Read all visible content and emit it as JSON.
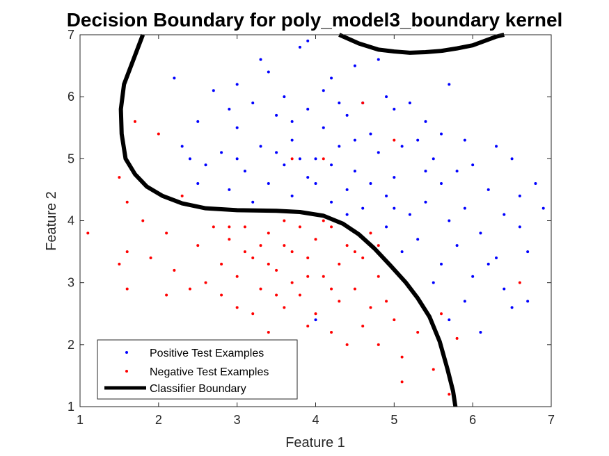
{
  "chart_data": {
    "type": "scatter",
    "title": "Decision Boundary for poly_model3_boundary kernel",
    "xlabel": "Feature 1",
    "ylabel": "Feature 2",
    "xlim": [
      1,
      7
    ],
    "ylim": [
      1,
      7
    ],
    "xticks": [
      1,
      2,
      3,
      4,
      5,
      6,
      7
    ],
    "yticks": [
      1,
      2,
      3,
      4,
      5,
      6,
      7
    ],
    "grid": false,
    "legend_position": "bottom-left",
    "colors": {
      "positive": "#0000ff",
      "negative": "#ff0000",
      "boundary": "#000000"
    },
    "series": [
      {
        "name": "Positive Test Examples",
        "kind": "points",
        "points": [
          [
            3.9,
            6.9
          ],
          [
            4.8,
            6.6
          ],
          [
            3.8,
            6.8
          ],
          [
            4.5,
            6.5
          ],
          [
            3.4,
            6.4
          ],
          [
            4.2,
            6.3
          ],
          [
            3.0,
            6.2
          ],
          [
            2.7,
            6.1
          ],
          [
            3.6,
            6.0
          ],
          [
            4.9,
            6.0
          ],
          [
            5.7,
            6.2
          ],
          [
            2.2,
            6.3
          ],
          [
            3.2,
            5.9
          ],
          [
            3.9,
            5.8
          ],
          [
            4.4,
            5.7
          ],
          [
            5.0,
            5.8
          ],
          [
            5.4,
            5.6
          ],
          [
            2.5,
            5.6
          ],
          [
            3.0,
            5.5
          ],
          [
            3.5,
            5.7
          ],
          [
            4.1,
            5.5
          ],
          [
            4.7,
            5.4
          ],
          [
            5.3,
            5.3
          ],
          [
            5.9,
            5.3
          ],
          [
            6.3,
            5.2
          ],
          [
            2.3,
            5.2
          ],
          [
            2.8,
            5.1
          ],
          [
            3.3,
            5.2
          ],
          [
            3.7,
            5.3
          ],
          [
            4.3,
            5.2
          ],
          [
            4.8,
            5.1
          ],
          [
            5.5,
            5.0
          ],
          [
            6.0,
            4.9
          ],
          [
            6.5,
            5.0
          ],
          [
            2.6,
            4.9
          ],
          [
            3.1,
            4.8
          ],
          [
            3.6,
            4.9
          ],
          [
            4.0,
            5.0
          ],
          [
            4.5,
            4.8
          ],
          [
            5.0,
            4.7
          ],
          [
            5.6,
            4.6
          ],
          [
            6.2,
            4.5
          ],
          [
            6.8,
            4.6
          ],
          [
            2.5,
            4.6
          ],
          [
            2.9,
            4.5
          ],
          [
            3.4,
            4.6
          ],
          [
            3.9,
            4.7
          ],
          [
            4.4,
            4.5
          ],
          [
            4.9,
            4.4
          ],
          [
            5.4,
            4.3
          ],
          [
            5.9,
            4.2
          ],
          [
            6.4,
            4.1
          ],
          [
            6.9,
            4.2
          ],
          [
            3.2,
            4.3
          ],
          [
            3.7,
            4.4
          ],
          [
            4.2,
            4.3
          ],
          [
            4.6,
            4.2
          ],
          [
            5.2,
            4.1
          ],
          [
            5.7,
            4.0
          ],
          [
            6.1,
            3.8
          ],
          [
            6.6,
            3.9
          ],
          [
            4.9,
            3.9
          ],
          [
            5.3,
            3.7
          ],
          [
            5.8,
            3.6
          ],
          [
            6.3,
            3.4
          ],
          [
            6.7,
            3.5
          ],
          [
            5.1,
            3.5
          ],
          [
            5.6,
            3.3
          ],
          [
            6.0,
            3.1
          ],
          [
            6.4,
            2.9
          ],
          [
            5.5,
            3.0
          ],
          [
            5.9,
            2.7
          ],
          [
            6.5,
            2.6
          ],
          [
            5.7,
            2.4
          ],
          [
            6.1,
            2.2
          ],
          [
            6.7,
            2.7
          ],
          [
            4.0,
            2.4
          ],
          [
            3.3,
            6.6
          ],
          [
            4.1,
            6.1
          ],
          [
            4.6,
            5.9
          ],
          [
            3.7,
            5.6
          ],
          [
            4.3,
            5.9
          ],
          [
            2.9,
            5.8
          ],
          [
            5.2,
            5.9
          ],
          [
            4.0,
            4.6
          ],
          [
            4.7,
            4.6
          ],
          [
            5.8,
            4.8
          ],
          [
            3.5,
            5.1
          ],
          [
            4.2,
            4.9
          ],
          [
            5.1,
            5.2
          ],
          [
            3.0,
            5.0
          ],
          [
            2.4,
            5.0
          ],
          [
            5.6,
            5.4
          ],
          [
            6.6,
            4.4
          ],
          [
            4.5,
            5.3
          ],
          [
            3.8,
            5.0
          ],
          [
            4.4,
            4.1
          ],
          [
            5.0,
            4.2
          ],
          [
            5.4,
            4.8
          ],
          [
            6.2,
            3.3
          ]
        ]
      },
      {
        "name": "Negative Test Examples",
        "kind": "points",
        "points": [
          [
            1.1,
            3.8
          ],
          [
            1.5,
            4.7
          ],
          [
            1.6,
            3.5
          ],
          [
            1.5,
            3.3
          ],
          [
            1.6,
            2.9
          ],
          [
            1.8,
            4.0
          ],
          [
            1.9,
            3.4
          ],
          [
            2.1,
            3.8
          ],
          [
            2.2,
            3.2
          ],
          [
            2.1,
            2.8
          ],
          [
            2.3,
            4.4
          ],
          [
            2.5,
            3.6
          ],
          [
            2.4,
            2.9
          ],
          [
            2.7,
            3.9
          ],
          [
            2.8,
            3.3
          ],
          [
            2.6,
            3.0
          ],
          [
            2.9,
            3.7
          ],
          [
            3.0,
            3.1
          ],
          [
            3.0,
            2.6
          ],
          [
            3.1,
            3.9
          ],
          [
            3.2,
            3.4
          ],
          [
            3.3,
            2.9
          ],
          [
            3.2,
            2.5
          ],
          [
            3.4,
            3.8
          ],
          [
            3.5,
            3.2
          ],
          [
            3.4,
            2.2
          ],
          [
            3.6,
            3.6
          ],
          [
            3.7,
            3.0
          ],
          [
            3.6,
            2.6
          ],
          [
            3.8,
            3.9
          ],
          [
            3.9,
            3.4
          ],
          [
            3.8,
            2.8
          ],
          [
            4.0,
            3.7
          ],
          [
            4.1,
            3.1
          ],
          [
            4.0,
            2.5
          ],
          [
            4.2,
            3.9
          ],
          [
            4.3,
            3.3
          ],
          [
            4.2,
            2.2
          ],
          [
            4.4,
            3.6
          ],
          [
            4.5,
            2.9
          ],
          [
            4.4,
            2.0
          ],
          [
            4.6,
            3.4
          ],
          [
            4.7,
            2.6
          ],
          [
            4.6,
            2.3
          ],
          [
            4.8,
            3.1
          ],
          [
            4.9,
            2.7
          ],
          [
            4.8,
            2.0
          ],
          [
            5.0,
            2.4
          ],
          [
            5.1,
            1.8
          ],
          [
            5.3,
            2.2
          ],
          [
            5.5,
            1.6
          ],
          [
            5.1,
            1.4
          ],
          [
            5.6,
            2.5
          ],
          [
            5.8,
            2.1
          ],
          [
            5.7,
            1.2
          ],
          [
            6.6,
            3.0
          ],
          [
            4.6,
            5.9
          ],
          [
            3.7,
            5.0
          ],
          [
            4.1,
            5.0
          ],
          [
            5.0,
            5.3
          ],
          [
            2.0,
            5.4
          ],
          [
            1.7,
            5.6
          ],
          [
            3.5,
            2.8
          ],
          [
            3.9,
            2.3
          ],
          [
            4.3,
            2.7
          ],
          [
            3.3,
            3.6
          ],
          [
            2.8,
            2.8
          ],
          [
            3.1,
            3.5
          ],
          [
            4.7,
            3.8
          ],
          [
            3.6,
            4.0
          ],
          [
            4.1,
            4.0
          ],
          [
            2.6,
            4.2
          ],
          [
            1.6,
            4.3
          ],
          [
            3.9,
            3.1
          ],
          [
            4.5,
            3.5
          ],
          [
            3.4,
            3.3
          ],
          [
            4.2,
            2.9
          ],
          [
            2.9,
            3.9
          ],
          [
            4.8,
            3.6
          ],
          [
            3.7,
            3.5
          ]
        ]
      },
      {
        "name": "Classifier Boundary",
        "kind": "line",
        "segments": [
          [
            [
              1.8,
              7.0
            ],
            [
              1.68,
              6.6
            ],
            [
              1.56,
              6.2
            ],
            [
              1.52,
              5.8
            ],
            [
              1.53,
              5.4
            ],
            [
              1.58,
              5.0
            ],
            [
              1.7,
              4.75
            ],
            [
              1.85,
              4.55
            ],
            [
              2.05,
              4.4
            ],
            [
              2.3,
              4.28
            ],
            [
              2.6,
              4.2
            ],
            [
              3.0,
              4.17
            ],
            [
              3.5,
              4.16
            ],
            [
              3.8,
              4.14
            ],
            [
              4.1,
              4.08
            ],
            [
              4.35,
              3.95
            ],
            [
              4.55,
              3.78
            ],
            [
              4.75,
              3.55
            ],
            [
              4.95,
              3.28
            ],
            [
              5.15,
              3.0
            ],
            [
              5.3,
              2.75
            ],
            [
              5.45,
              2.45
            ],
            [
              5.58,
              2.05
            ],
            [
              5.68,
              1.6
            ],
            [
              5.75,
              1.25
            ],
            [
              5.78,
              1.0
            ]
          ],
          [
            [
              4.3,
              7.0
            ],
            [
              4.55,
              6.86
            ],
            [
              4.8,
              6.76
            ],
            [
              5.0,
              6.73
            ],
            [
              5.2,
              6.71
            ],
            [
              5.4,
              6.72
            ],
            [
              5.6,
              6.74
            ],
            [
              5.8,
              6.78
            ],
            [
              6.0,
              6.83
            ],
            [
              6.15,
              6.9
            ],
            [
              6.3,
              6.97
            ],
            [
              6.4,
              7.0
            ]
          ]
        ]
      }
    ]
  }
}
